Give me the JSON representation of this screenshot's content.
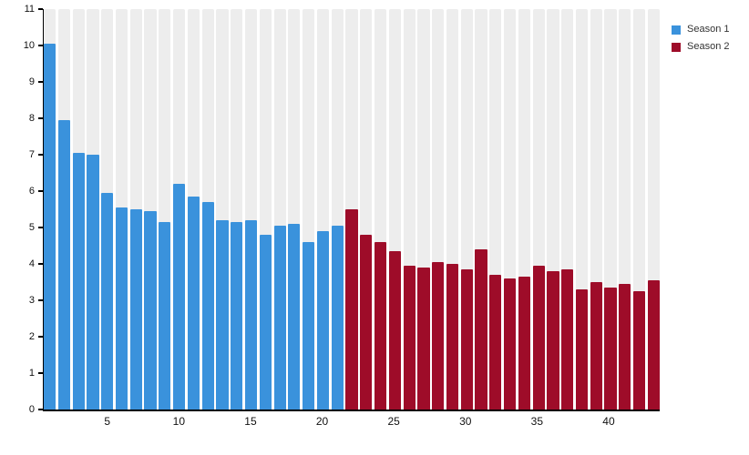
{
  "chart_data": {
    "type": "bar",
    "title": "",
    "xlabel": "",
    "ylabel": "",
    "ylim": [
      0,
      11
    ],
    "y_ticks": [
      0,
      1,
      2,
      3,
      4,
      5,
      6,
      7,
      8,
      9,
      10,
      11
    ],
    "x_ticks": [
      5,
      10,
      15,
      20,
      25,
      30,
      35,
      40
    ],
    "x_range": [
      1,
      43
    ],
    "grid": "off",
    "background_tracks": true,
    "track_color": "#ededed",
    "legend_position": "top-right",
    "series": [
      {
        "name": "Season 1",
        "color": "#3a92dc",
        "episodes_start": 1,
        "values": [
          10.05,
          7.95,
          7.05,
          7.0,
          5.95,
          5.55,
          5.5,
          5.45,
          5.15,
          6.2,
          5.85,
          5.7,
          5.2,
          5.15,
          5.2,
          4.8,
          5.05,
          5.1,
          4.6,
          4.9,
          5.05
        ]
      },
      {
        "name": "Season 2",
        "color": "#9e0c29",
        "episodes_start": 22,
        "values": [
          5.5,
          4.8,
          4.6,
          4.35,
          3.95,
          3.9,
          4.05,
          4.0,
          3.85,
          4.4,
          3.7,
          3.6,
          3.65,
          3.95,
          3.8,
          3.85,
          3.3,
          3.5,
          3.35,
          3.45,
          3.25,
          3.55
        ]
      }
    ]
  },
  "legend": {
    "items": [
      {
        "label": "Season 1",
        "color": "#3a92dc"
      },
      {
        "label": "Season 2",
        "color": "#9e0c29"
      }
    ]
  }
}
